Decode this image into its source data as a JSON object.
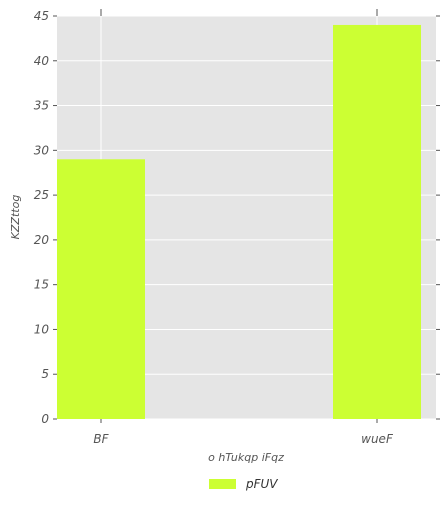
{
  "chart_data": {
    "type": "bar",
    "categories": [
      "BF",
      "wueF"
    ],
    "series": [
      {
        "name": "pFUV",
        "values": [
          29,
          44
        ]
      }
    ],
    "xlabel": "o hTukqp iFqz",
    "ylabel": "KZZttog",
    "ylim": [
      0,
      45
    ],
    "yticks": [
      0,
      5,
      10,
      15,
      20,
      25,
      30,
      35,
      40,
      45
    ],
    "grid": true,
    "legend": "bottom-center",
    "colors": {
      "bar": "#ccff33",
      "plot_bg": "#e5e5e5",
      "grid": "#ffffff"
    }
  }
}
